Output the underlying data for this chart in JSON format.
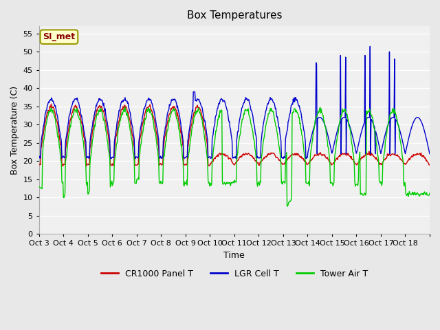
{
  "title": "Box Temperatures",
  "xlabel": "Time",
  "ylabel": "Box Temperature (C)",
  "ylim": [
    0,
    57
  ],
  "yticks": [
    0,
    5,
    10,
    15,
    20,
    25,
    30,
    35,
    40,
    45,
    50,
    55
  ],
  "bg_color": "#e8e8e8",
  "plot_bg_color": "#f0f0f0",
  "grid_color": "#ffffff",
  "label_box_text": "SI_met",
  "label_box_facecolor": "#ffffcc",
  "label_box_edgecolor": "#999900",
  "label_box_textcolor": "#880000",
  "series_CR1000_color": "#cc0000",
  "series_CR1000_label": "CR1000 Panel T",
  "series_LGR_color": "#0000cc",
  "series_LGR_label": "LGR Cell T",
  "series_Tower_color": "#00cc00",
  "series_Tower_label": "Tower Air T",
  "xtick_positions": [
    0,
    1,
    2,
    3,
    4,
    5,
    6,
    7,
    8,
    9,
    10,
    11,
    12,
    13,
    14,
    15,
    16
  ],
  "xtick_labels": [
    "Oct 3",
    "Oct 4",
    "Oct 5",
    "Oct 6",
    "Oct 7",
    "Oct 8",
    "Oct 9",
    "Oct 10",
    "Oct 11",
    "Oct 12",
    "Oct 13",
    "Oct 14",
    "Oct 15",
    "Oct 16",
    "Oct 17",
    "Oct 18",
    ""
  ],
  "num_days": 16
}
